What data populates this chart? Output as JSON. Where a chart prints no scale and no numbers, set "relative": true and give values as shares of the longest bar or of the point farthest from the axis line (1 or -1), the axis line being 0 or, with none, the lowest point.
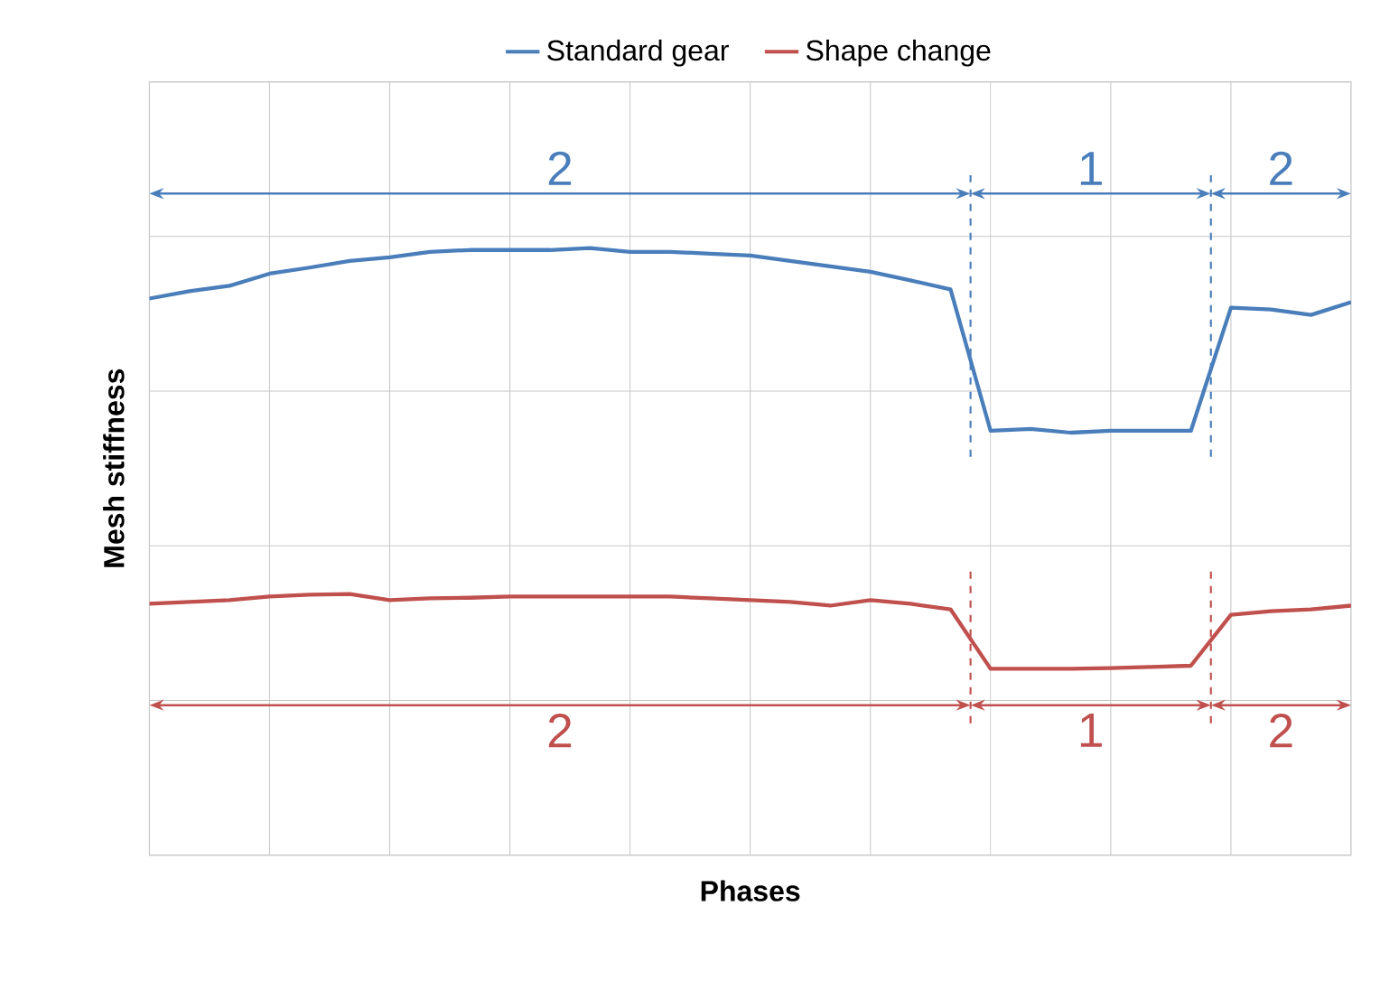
{
  "chart_data": {
    "type": "line",
    "relative": true,
    "xlabel": "Phases",
    "ylabel": "Mesh stiffness",
    "categories": [
      null,
      null,
      null,
      null,
      null,
      null,
      null,
      null,
      null,
      null,
      null,
      null,
      null,
      null,
      null,
      null,
      null,
      null,
      null,
      null,
      null,
      null,
      null,
      null,
      null,
      null,
      null,
      null,
      null,
      null,
      null
    ],
    "grid": true,
    "legend": "top",
    "marker": "none",
    "line_style": "solid",
    "series": [
      {
        "name": "Standard gear",
        "color": "#4a7ebb",
        "values": [
          0.917,
          0.929,
          0.938,
          0.958,
          0.968,
          0.979,
          0.985,
          0.994,
          0.997,
          0.997,
          0.997,
          1.0,
          0.994,
          0.994,
          0.991,
          0.988,
          0.979,
          0.97,
          0.961,
          0.947,
          0.932,
          0.699,
          0.702,
          0.696,
          0.699,
          0.699,
          0.699,
          0.902,
          0.899,
          0.89,
          0.911
        ]
      },
      {
        "name": "Shape change",
        "color": "#c0504d",
        "values": [
          0.414,
          0.417,
          0.42,
          0.426,
          0.429,
          0.43,
          0.42,
          0.423,
          0.424,
          0.426,
          0.426,
          0.426,
          0.426,
          0.426,
          0.423,
          0.42,
          0.417,
          0.411,
          0.42,
          0.414,
          0.405,
          0.307,
          0.307,
          0.307,
          0.308,
          0.31,
          0.312,
          0.396,
          0.402,
          0.405,
          0.411
        ]
      }
    ],
    "annotations": [
      "2",
      "1",
      "2",
      "2",
      "1",
      "2"
    ]
  }
}
